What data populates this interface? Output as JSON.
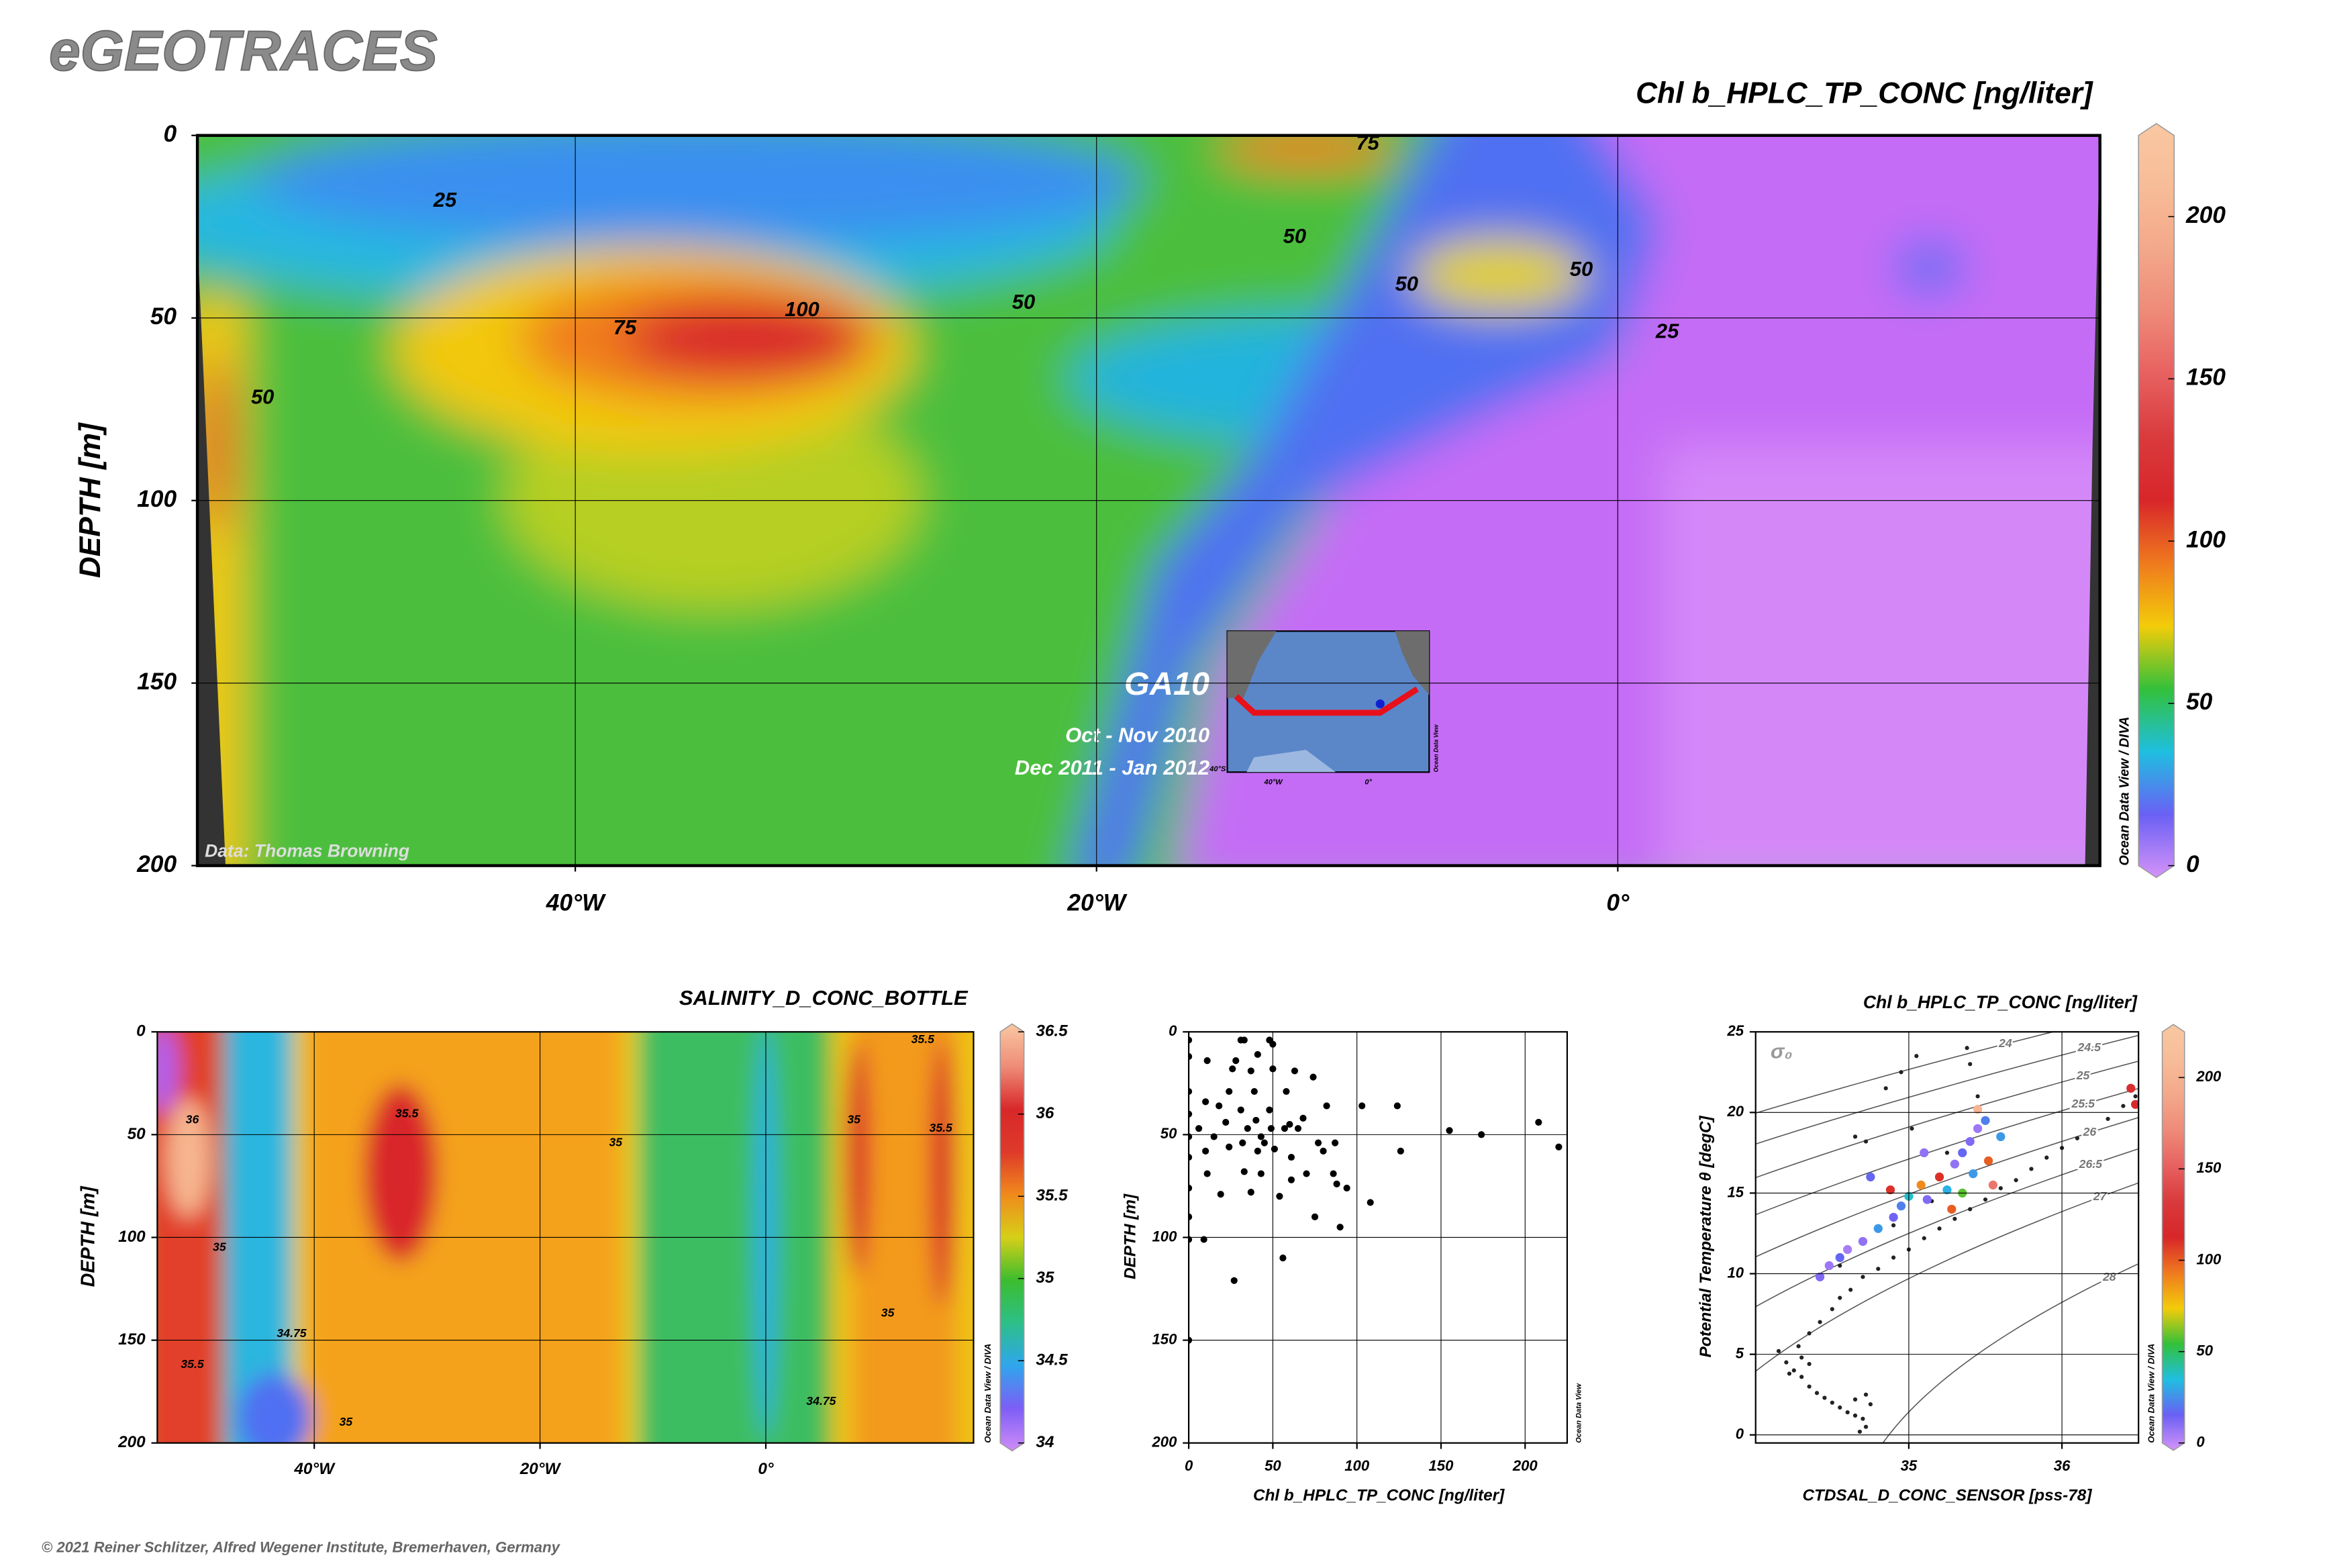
{
  "header": {
    "title": "eGEOTRACES"
  },
  "footer": "© 2021 Reiner Schlitzer, Alfred Wegener Institute, Bremerhaven, Germany",
  "chart_data": [
    {
      "type": "heatmap",
      "title": "Chl b_HPLC_TP_CONC [ng/liter]",
      "ylabel": "DEPTH [m]",
      "xlim": [
        -54.5,
        18.5
      ],
      "xticks": [
        {
          "value": -40,
          "label": "40°W"
        },
        {
          "value": -20,
          "label": "20°W"
        },
        {
          "value": 0,
          "label": "0°"
        }
      ],
      "ylim": [
        0,
        200
      ],
      "y_inverted": true,
      "yticks": [
        0,
        50,
        100,
        150,
        200
      ],
      "grid": true,
      "colorbar": {
        "lim": [
          0,
          225
        ],
        "ticks": [
          0,
          50,
          100,
          150,
          200
        ],
        "colors": [
          "#d593f8",
          "#6a60f4",
          "#1fbfe0",
          "#33c03a",
          "#f3cc0a",
          "#ef7a1e",
          "#d8262a",
          "#d93a3c",
          "#e76060",
          "#ee8a78",
          "#f3a88a",
          "#f7bc98",
          "#f9c8a2"
        ]
      },
      "contour_labels": [
        {
          "value": 25,
          "x": -45.0,
          "y": 18
        },
        {
          "value": 75,
          "x": -9.6,
          "y": 2.4
        },
        {
          "value": 50,
          "x": -12.4,
          "y": 28
        },
        {
          "value": 50,
          "x": -8.1,
          "y": 41
        },
        {
          "value": 50,
          "x": -1.4,
          "y": 37
        },
        {
          "value": 25,
          "x": 1.9,
          "y": 54
        },
        {
          "value": 50,
          "x": -22.8,
          "y": 46
        },
        {
          "value": 100,
          "x": -31.3,
          "y": 48
        },
        {
          "value": 75,
          "x": -38.1,
          "y": 53
        },
        {
          "value": 50,
          "x": -52.0,
          "y": 72
        }
      ],
      "side_label": "Ocean Data View / DIVA",
      "credit": "Data: Thomas Browning",
      "section_name": "GA10",
      "periods": [
        "Oct - Nov 2010",
        "Dec 2011 - Jan 2012"
      ],
      "inset_map": {
        "labels": [
          "40°W",
          "0°",
          "40°S"
        ],
        "side_label": "Ocean Data View"
      }
    },
    {
      "type": "heatmap",
      "title": "SALINITY_D_CONC_BOTTLE",
      "ylabel": "DEPTH [m]",
      "xlim": [
        -53.9,
        18.4
      ],
      "xticks": [
        {
          "value": -40,
          "label": "40°W"
        },
        {
          "value": -20,
          "label": "20°W"
        },
        {
          "value": 0,
          "label": "0°"
        }
      ],
      "ylim": [
        0,
        200
      ],
      "y_inverted": true,
      "yticks": [
        0,
        50,
        100,
        150,
        200
      ],
      "grid": true,
      "colorbar": {
        "lim": [
          34,
          36.5
        ],
        "ticks": [
          34,
          34.5,
          35,
          35.5,
          36,
          36.5
        ],
        "colors": [
          "#d08cf8",
          "#7d5ef5",
          "#2fa6ec",
          "#2dbf88",
          "#3cbd2e",
          "#d6cf18",
          "#f08a1c",
          "#de3a2a",
          "#d8282a",
          "#ee8c78",
          "#f9c8a2"
        ]
      },
      "contour_labels": [
        {
          "value": 35.5,
          "x": -31.8,
          "y": 40
        },
        {
          "value": 36,
          "x": -50.8,
          "y": 43
        },
        {
          "value": 35,
          "x": -48.4,
          "y": 105
        },
        {
          "value": 34.75,
          "x": -42,
          "y": 147
        },
        {
          "value": 35,
          "x": -37.2,
          "y": 190
        },
        {
          "value": 35.5,
          "x": -50.8,
          "y": 162
        },
        {
          "value": 35,
          "x": -13.3,
          "y": 54
        },
        {
          "value": 34.75,
          "x": 4.9,
          "y": 180
        },
        {
          "value": 35,
          "x": 10.8,
          "y": 137
        },
        {
          "value": 35,
          "x": 7.8,
          "y": 43
        },
        {
          "value": 35.5,
          "x": 13.9,
          "y": 4
        },
        {
          "value": 35.5,
          "x": 15.5,
          "y": 47
        }
      ],
      "side_label": "Ocean Data View / DIVA"
    },
    {
      "type": "scatter",
      "xlabel": "Chl b_HPLC_TP_CONC [ng/liter]",
      "ylabel": "DEPTH [m]",
      "xlim": [
        0,
        225
      ],
      "xticks": [
        0,
        50,
        100,
        150,
        200
      ],
      "ylim": [
        0,
        200
      ],
      "y_inverted": true,
      "yticks": [
        0,
        50,
        100,
        150,
        200
      ],
      "grid": true,
      "color": "#000000",
      "x": [
        0,
        0,
        0,
        0,
        0,
        0,
        0,
        0,
        0,
        0,
        11,
        10,
        6,
        10,
        11,
        9,
        15,
        18,
        19,
        22,
        24,
        26,
        28,
        31,
        33,
        31,
        32,
        33,
        35,
        37,
        37,
        39,
        40,
        41,
        41,
        43,
        43,
        45,
        48,
        50,
        50,
        48,
        49,
        51,
        54,
        56,
        57,
        58,
        60,
        61,
        63,
        65,
        68,
        70,
        74,
        75,
        77,
        80,
        82,
        86,
        87,
        88,
        90,
        94,
        103,
        108,
        124,
        126,
        155,
        174,
        208,
        220,
        27,
        24,
        61
      ],
      "y": [
        4,
        12,
        29,
        40,
        51,
        61,
        76,
        90,
        101,
        150,
        14,
        34,
        47,
        58,
        69,
        101,
        51,
        36,
        79,
        44,
        56,
        18,
        14,
        4,
        4,
        38,
        54,
        68,
        47,
        78,
        19,
        29,
        43,
        11,
        58,
        51,
        69,
        54,
        4,
        6,
        18,
        38,
        47,
        57,
        80,
        110,
        47,
        29,
        45,
        61,
        19,
        47,
        42,
        69,
        22,
        90,
        54,
        58,
        36,
        69,
        54,
        74,
        95,
        76,
        36,
        83,
        36,
        58,
        48,
        50,
        44,
        56,
        121,
        29,
        72
      ],
      "side_label": "Ocean Data View"
    },
    {
      "type": "scatter",
      "title": "Chl b_HPLC_TP_CONC [ng/liter]",
      "xlabel": "CTDSAL_D_CONC_SENSOR [pss-78]",
      "ylabel": "Potential Temperature θ [degC]",
      "xlim": [
        34.0,
        36.5
      ],
      "xticks": [
        35,
        36
      ],
      "ylim": [
        -0.5,
        25
      ],
      "yticks": [
        0,
        5,
        10,
        15,
        20,
        25
      ],
      "grid": true,
      "sigma_label": "σ₀",
      "sigma_levels": [
        24,
        24.5,
        25,
        25.5,
        26,
        26.5,
        27,
        28
      ],
      "colorbar": {
        "lim": [
          0,
          225
        ],
        "ticks": [
          0,
          50,
          100,
          150,
          200
        ],
        "colors": [
          "#d593f8",
          "#6a60f4",
          "#1fbfe0",
          "#33c03a",
          "#f3cc0a",
          "#ef7a1e",
          "#d8262a",
          "#d93a3c",
          "#e76060",
          "#ee8a78",
          "#f3a88a",
          "#f7bc98",
          "#f9c8a2"
        ]
      },
      "series": [
        {
          "color": "#222222",
          "x": [
            34.2,
            34.25,
            34.3,
            34.35,
            34.4,
            34.45,
            34.5,
            34.55,
            34.6,
            34.65,
            34.7,
            34.72,
            34.68,
            34.75,
            34.72,
            34.65,
            34.3,
            34.22,
            34.35,
            34.15,
            34.28,
            34.35,
            34.42,
            34.5,
            34.55,
            34.62,
            34.7,
            34.8,
            34.9,
            35.0,
            35.1,
            35.2,
            35.3,
            35.4,
            35.5,
            35.6,
            35.7,
            35.8,
            35.9,
            36.0,
            36.1,
            36.2,
            36.3,
            36.4,
            36.48,
            34.65,
            34.72,
            34.85,
            34.95,
            35.05,
            35.38,
            35.4,
            35.45,
            35.02,
            35.25,
            34.55,
            34.9,
            35.15
          ],
          "y": [
            4.5,
            4.0,
            3.6,
            3.0,
            2.6,
            2.3,
            2.0,
            1.7,
            1.4,
            1.2,
            1.0,
            0.5,
            0.2,
            1.9,
            2.5,
            2.2,
            4.8,
            3.8,
            4.4,
            5.2,
            5.5,
            6.3,
            7.0,
            7.8,
            8.5,
            9.0,
            9.8,
            10.3,
            11.0,
            11.5,
            12.2,
            12.8,
            13.4,
            14.0,
            14.6,
            15.3,
            15.8,
            16.5,
            17.2,
            17.8,
            18.4,
            19.0,
            19.6,
            20.4,
            21.0,
            18.5,
            18.2,
            21.5,
            22.5,
            23.5,
            24.0,
            23.0,
            21.0,
            19.0,
            17.5,
            10.5,
            13.0,
            14.5
          ]
        },
        {
          "x": [
            34.42,
            34.48,
            34.55,
            34.6,
            34.7,
            34.8,
            34.9,
            34.95,
            35.0,
            35.08,
            35.12,
            35.2,
            35.25,
            35.3,
            35.35,
            35.4,
            35.45,
            35.5,
            35.45,
            35.52,
            35.55,
            35.35,
            34.88,
            34.75,
            35.6,
            36.45,
            36.48,
            35.1,
            35.28,
            35.42
          ],
          "y": [
            9.8,
            10.5,
            11.0,
            11.5,
            12.0,
            12.8,
            13.5,
            14.2,
            14.8,
            15.5,
            14.6,
            16.0,
            15.2,
            16.8,
            17.5,
            18.2,
            19.0,
            19.5,
            20.2,
            17.0,
            15.5,
            15.0,
            15.2,
            16.0,
            18.5,
            21.5,
            20.5,
            17.5,
            14.0,
            16.2
          ],
          "c": [
            15,
            10,
            20,
            8,
            12,
            30,
            18,
            25,
            40,
            90,
            15,
            110,
            35,
            12,
            20,
            15,
            10,
            25,
            200,
            100,
            160,
            60,
            110,
            20,
            30,
            120,
            115,
            12,
            100,
            30
          ]
        }
      ],
      "side_label": "Ocean Data View / DIVA"
    }
  ]
}
